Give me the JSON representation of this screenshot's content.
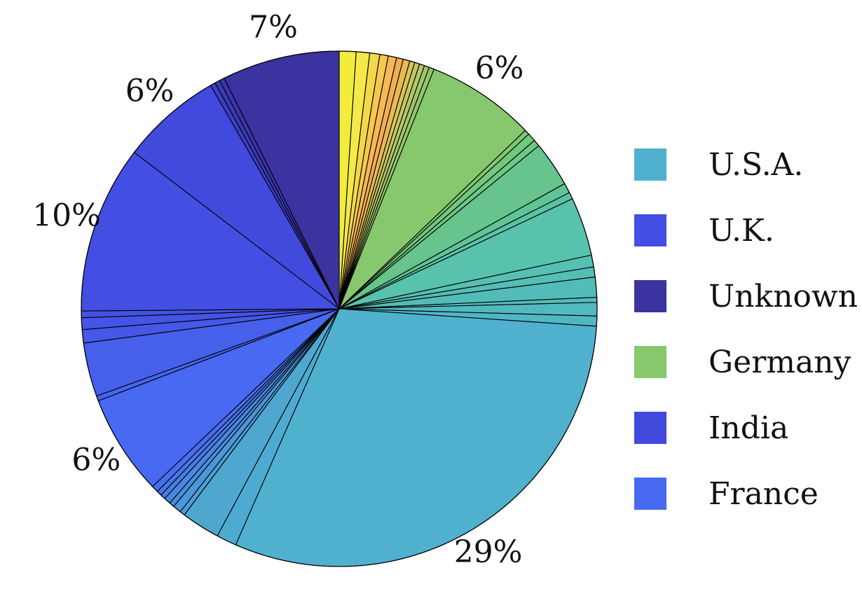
{
  "chart_data": {
    "type": "pie",
    "start_angle": "12 o'clock",
    "direction": "clockwise",
    "legend_position": "right",
    "slices": [
      {
        "value": 1.0,
        "color": "#f2ec3c"
      },
      {
        "value": 0.8,
        "color": "#f5e84a"
      },
      {
        "value": 0.6,
        "color": "#f2d84a"
      },
      {
        "value": 0.5,
        "color": "#f6c850"
      },
      {
        "value": 0.5,
        "color": "#f7b856"
      },
      {
        "value": 0.4,
        "color": "#f3ac58"
      },
      {
        "value": 0.4,
        "color": "#ecb852"
      },
      {
        "value": 0.3,
        "color": "#d9c45a"
      },
      {
        "value": 0.3,
        "color": "#c4c862"
      },
      {
        "value": 0.3,
        "color": "#b4c868"
      },
      {
        "value": 0.3,
        "color": "#a0c66c"
      },
      {
        "value": 0.3,
        "color": "#94c66c"
      },
      {
        "value": 6.5,
        "color": "#87c76d"
      },
      {
        "value": 0.3,
        "color": "#7ec874"
      },
      {
        "value": 0.5,
        "color": "#72c87c"
      },
      {
        "value": 0.4,
        "color": "#6cc884"
      },
      {
        "value": 2.7,
        "color": "#66c48c"
      },
      {
        "value": 0.6,
        "color": "#5fc498"
      },
      {
        "value": 0.4,
        "color": "#5cc3a2"
      },
      {
        "value": 3.5,
        "color": "#58c2ac"
      },
      {
        "value": 0.7,
        "color": "#56c0b2"
      },
      {
        "value": 0.6,
        "color": "#55bdb5"
      },
      {
        "value": 1.2,
        "color": "#54bcb8"
      },
      {
        "value": 0.3,
        "color": "#52bbbb"
      },
      {
        "value": 0.8,
        "color": "#52b9c0"
      },
      {
        "value": 0.6,
        "color": "#51b6c4"
      },
      {
        "value": 29,
        "color": "#4fb1ce"
      },
      {
        "value": 1.2,
        "color": "#4faad2"
      },
      {
        "value": 2.3,
        "color": "#4fa7d0"
      },
      {
        "value": 0.3,
        "color": "#4c9ed6"
      },
      {
        "value": 0.5,
        "color": "#4c96da"
      },
      {
        "value": 0.3,
        "color": "#4b8ede"
      },
      {
        "value": 0.4,
        "color": "#4a86e2"
      },
      {
        "value": 0.3,
        "color": "#497ee6"
      },
      {
        "value": 0.3,
        "color": "#4876ea"
      },
      {
        "value": 0.4,
        "color": "#486eef"
      },
      {
        "value": 6,
        "color": "#4869f2"
      },
      {
        "value": 0.3,
        "color": "#4864f0"
      },
      {
        "value": 3.2,
        "color": "#4660ec"
      },
      {
        "value": 0.8,
        "color": "#4558e8"
      },
      {
        "value": 0.7,
        "color": "#4554e6"
      },
      {
        "value": 0.4,
        "color": "#4452e4"
      },
      {
        "value": 10,
        "color": "#434fe2"
      },
      {
        "value": 6,
        "color": "#4249dd"
      },
      {
        "value": 0.3,
        "color": "#3c3ec6"
      },
      {
        "value": 0.3,
        "color": "#3a38b6"
      },
      {
        "value": 0.3,
        "color": "#3936ae"
      },
      {
        "value": 7,
        "color": "#3b33a0"
      }
    ],
    "labels": [
      {
        "text": "7%",
        "slice": 47
      },
      {
        "text": "6%",
        "slice": 12
      },
      {
        "text": "6%",
        "slice": 43
      },
      {
        "text": "10%",
        "slice": 42
      },
      {
        "text": "6%",
        "slice": 36
      },
      {
        "text": "29%",
        "slice": 26
      }
    ],
    "legend": [
      {
        "name": "U.S.A.",
        "color": "#4fb1ce"
      },
      {
        "name": "U.K.",
        "color": "#434fe2"
      },
      {
        "name": "Unknown",
        "color": "#3b33a0"
      },
      {
        "name": "Germany",
        "color": "#87c76d"
      },
      {
        "name": "India",
        "color": "#4249dd"
      },
      {
        "name": "France",
        "color": "#4869f2"
      }
    ]
  }
}
